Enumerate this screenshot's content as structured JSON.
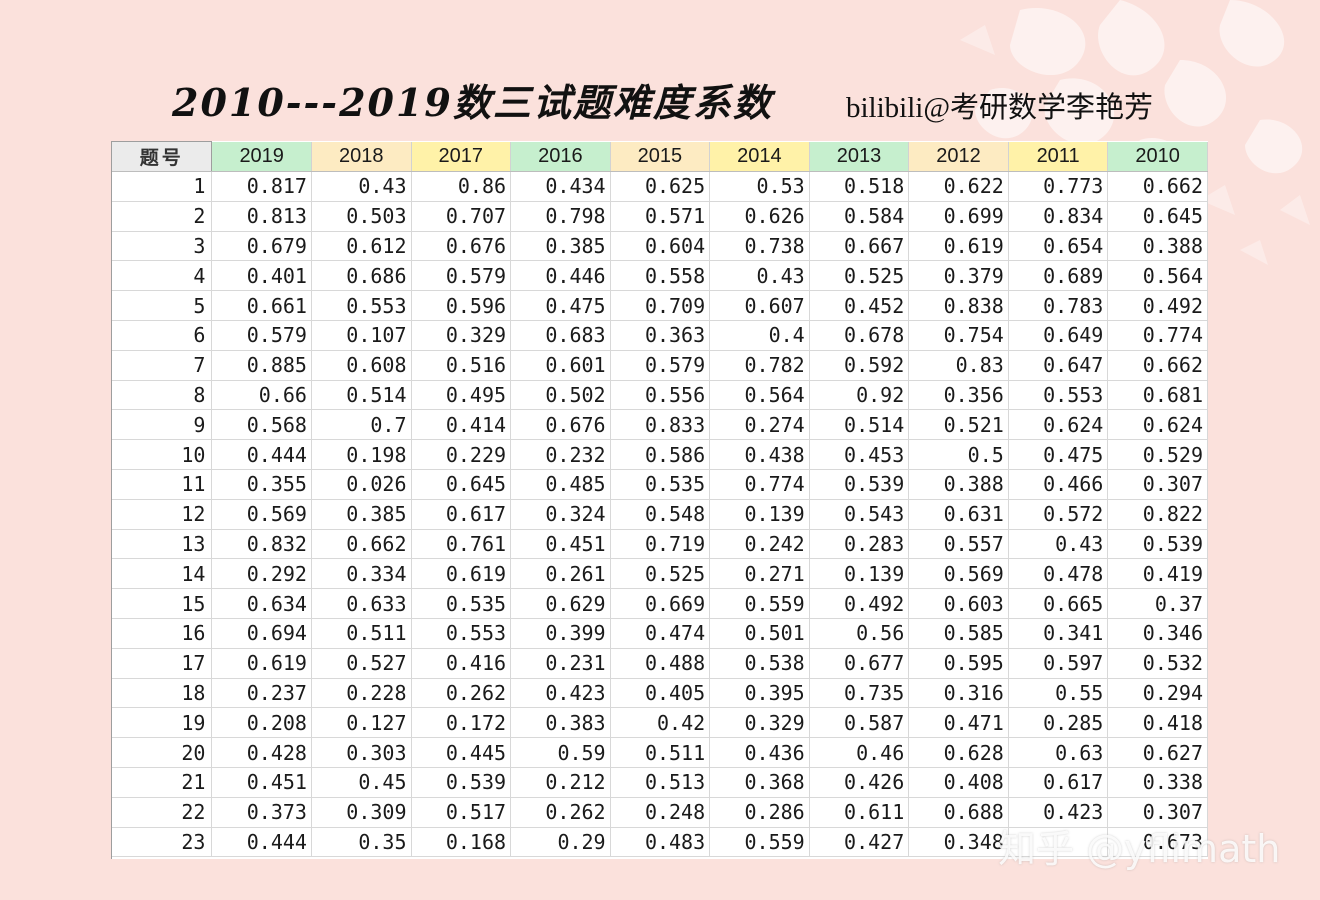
{
  "title": "2010---2019数三试题难度系数",
  "credit": "bilibili@考研数学李艳芳",
  "watermark": "知乎 @yflimath",
  "colors": {
    "background": "#fbe1dc",
    "header_green": "#c6efce",
    "header_yellow": "#ffeb9c",
    "corner_gray": "#ebebeb"
  },
  "table": {
    "corner_label": "题号",
    "years": [
      {
        "label": "2019",
        "color": "#c6efce"
      },
      {
        "label": "2018",
        "color": "#fdebc2"
      },
      {
        "label": "2017",
        "color": "#fff2a8"
      },
      {
        "label": "2016",
        "color": "#c6efce"
      },
      {
        "label": "2015",
        "color": "#fdebc2"
      },
      {
        "label": "2014",
        "color": "#fff2a8"
      },
      {
        "label": "2013",
        "color": "#c6efce"
      },
      {
        "label": "2012",
        "color": "#fdebc2"
      },
      {
        "label": "2011",
        "color": "#fff2a8"
      },
      {
        "label": "2010",
        "color": "#c6efce"
      }
    ],
    "rows": [
      {
        "q": "1",
        "v": [
          "0.817",
          "0.43",
          "0.86",
          "0.434",
          "0.625",
          "0.53",
          "0.518",
          "0.622",
          "0.773",
          "0.662"
        ]
      },
      {
        "q": "2",
        "v": [
          "0.813",
          "0.503",
          "0.707",
          "0.798",
          "0.571",
          "0.626",
          "0.584",
          "0.699",
          "0.834",
          "0.645"
        ]
      },
      {
        "q": "3",
        "v": [
          "0.679",
          "0.612",
          "0.676",
          "0.385",
          "0.604",
          "0.738",
          "0.667",
          "0.619",
          "0.654",
          "0.388"
        ]
      },
      {
        "q": "4",
        "v": [
          "0.401",
          "0.686",
          "0.579",
          "0.446",
          "0.558",
          "0.43",
          "0.525",
          "0.379",
          "0.689",
          "0.564"
        ]
      },
      {
        "q": "5",
        "v": [
          "0.661",
          "0.553",
          "0.596",
          "0.475",
          "0.709",
          "0.607",
          "0.452",
          "0.838",
          "0.783",
          "0.492"
        ]
      },
      {
        "q": "6",
        "v": [
          "0.579",
          "0.107",
          "0.329",
          "0.683",
          "0.363",
          "0.4",
          "0.678",
          "0.754",
          "0.649",
          "0.774"
        ]
      },
      {
        "q": "7",
        "v": [
          "0.885",
          "0.608",
          "0.516",
          "0.601",
          "0.579",
          "0.782",
          "0.592",
          "0.83",
          "0.647",
          "0.662"
        ]
      },
      {
        "q": "8",
        "v": [
          "0.66",
          "0.514",
          "0.495",
          "0.502",
          "0.556",
          "0.564",
          "0.92",
          "0.356",
          "0.553",
          "0.681"
        ]
      },
      {
        "q": "9",
        "v": [
          "0.568",
          "0.7",
          "0.414",
          "0.676",
          "0.833",
          "0.274",
          "0.514",
          "0.521",
          "0.624",
          "0.624"
        ]
      },
      {
        "q": "10",
        "v": [
          "0.444",
          "0.198",
          "0.229",
          "0.232",
          "0.586",
          "0.438",
          "0.453",
          "0.5",
          "0.475",
          "0.529"
        ]
      },
      {
        "q": "11",
        "v": [
          "0.355",
          "0.026",
          "0.645",
          "0.485",
          "0.535",
          "0.774",
          "0.539",
          "0.388",
          "0.466",
          "0.307"
        ]
      },
      {
        "q": "12",
        "v": [
          "0.569",
          "0.385",
          "0.617",
          "0.324",
          "0.548",
          "0.139",
          "0.543",
          "0.631",
          "0.572",
          "0.822"
        ]
      },
      {
        "q": "13",
        "v": [
          "0.832",
          "0.662",
          "0.761",
          "0.451",
          "0.719",
          "0.242",
          "0.283",
          "0.557",
          "0.43",
          "0.539"
        ]
      },
      {
        "q": "14",
        "v": [
          "0.292",
          "0.334",
          "0.619",
          "0.261",
          "0.525",
          "0.271",
          "0.139",
          "0.569",
          "0.478",
          "0.419"
        ]
      },
      {
        "q": "15",
        "v": [
          "0.634",
          "0.633",
          "0.535",
          "0.629",
          "0.669",
          "0.559",
          "0.492",
          "0.603",
          "0.665",
          "0.37"
        ]
      },
      {
        "q": "16",
        "v": [
          "0.694",
          "0.511",
          "0.553",
          "0.399",
          "0.474",
          "0.501",
          "0.56",
          "0.585",
          "0.341",
          "0.346"
        ]
      },
      {
        "q": "17",
        "v": [
          "0.619",
          "0.527",
          "0.416",
          "0.231",
          "0.488",
          "0.538",
          "0.677",
          "0.595",
          "0.597",
          "0.532"
        ]
      },
      {
        "q": "18",
        "v": [
          "0.237",
          "0.228",
          "0.262",
          "0.423",
          "0.405",
          "0.395",
          "0.735",
          "0.316",
          "0.55",
          "0.294"
        ]
      },
      {
        "q": "19",
        "v": [
          "0.208",
          "0.127",
          "0.172",
          "0.383",
          "0.42",
          "0.329",
          "0.587",
          "0.471",
          "0.285",
          "0.418"
        ]
      },
      {
        "q": "20",
        "v": [
          "0.428",
          "0.303",
          "0.445",
          "0.59",
          "0.511",
          "0.436",
          "0.46",
          "0.628",
          "0.63",
          "0.627"
        ]
      },
      {
        "q": "21",
        "v": [
          "0.451",
          "0.45",
          "0.539",
          "0.212",
          "0.513",
          "0.368",
          "0.426",
          "0.408",
          "0.617",
          "0.338"
        ]
      },
      {
        "q": "22",
        "v": [
          "0.373",
          "0.309",
          "0.517",
          "0.262",
          "0.248",
          "0.286",
          "0.611",
          "0.688",
          "0.423",
          "0.307"
        ]
      },
      {
        "q": "23",
        "v": [
          "0.444",
          "0.35",
          "0.168",
          "0.29",
          "0.483",
          "0.559",
          "0.427",
          "0.348",
          "",
          "0.673"
        ]
      }
    ]
  }
}
